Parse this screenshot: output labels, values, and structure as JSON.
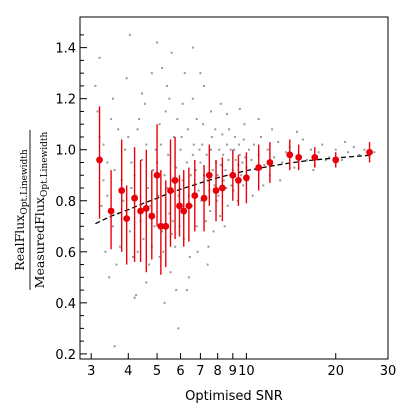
{
  "chart_data": {
    "type": "scatter",
    "title": "",
    "xlabel": "Optimised SNR",
    "ylabel": {
      "numerator": "RealFlux",
      "numerator_sub": "Opt.Linewidth",
      "denominator": "MeasuredFlux",
      "denominator_sub": "Opt.Linewidth"
    },
    "x_scale": "log",
    "xlim": [
      2.75,
      30
    ],
    "ylim": [
      0.18,
      1.52
    ],
    "x_ticks": [
      3,
      4,
      5,
      6,
      7,
      8,
      9,
      10,
      20,
      30
    ],
    "x_tick_labels": [
      "3",
      "4",
      "5",
      "6",
      "7",
      "8",
      "9",
      "10",
      "20",
      "30"
    ],
    "y_ticks": [
      0.2,
      0.4,
      0.6,
      0.8,
      1.0,
      1.2,
      1.4
    ],
    "y_tick_labels": [
      "0.2",
      "0.4",
      "0.6",
      "0.8",
      "1.0",
      "1.2",
      "1.4"
    ],
    "grid": false,
    "legend": "none",
    "series": [
      {
        "kind": "points",
        "color": "#999999",
        "points": [
          [
            3.1,
            1.25
          ],
          [
            3.2,
            1.36
          ],
          [
            3.15,
            1.15
          ],
          [
            3.3,
            1.02
          ],
          [
            3.4,
            0.95
          ],
          [
            3.25,
            0.78
          ],
          [
            3.35,
            0.6
          ],
          [
            3.45,
            0.5
          ],
          [
            3.2,
            1.05
          ],
          [
            3.5,
            1.12
          ],
          [
            3.6,
            0.92
          ],
          [
            3.7,
            1.08
          ],
          [
            3.55,
            0.7
          ],
          [
            3.8,
            0.88
          ],
          [
            3.65,
            0.55
          ],
          [
            3.9,
            1.0
          ],
          [
            3.75,
            0.62
          ],
          [
            3.85,
            0.8
          ],
          [
            3.55,
            1.2
          ],
          [
            3.3,
            0.88
          ],
          [
            4.0,
            1.05
          ],
          [
            4.1,
            0.95
          ],
          [
            4.05,
            0.68
          ],
          [
            4.2,
            0.9
          ],
          [
            4.3,
            1.08
          ],
          [
            4.15,
            0.58
          ],
          [
            4.25,
            0.82
          ],
          [
            4.4,
            0.72
          ],
          [
            4.35,
            1.12
          ],
          [
            4.05,
            1.45
          ],
          [
            4.2,
            0.42
          ],
          [
            4.45,
            0.96
          ],
          [
            4.5,
            0.65
          ],
          [
            4.6,
            1.02
          ],
          [
            4.65,
            0.85
          ],
          [
            4.7,
            0.55
          ],
          [
            4.75,
            0.78
          ],
          [
            4.55,
            1.18
          ],
          [
            4.85,
            0.92
          ],
          [
            4.9,
            0.7
          ],
          [
            4.95,
            1.0
          ],
          [
            4.8,
            0.62
          ],
          [
            4.1,
            0.85
          ],
          [
            4.6,
            0.48
          ],
          [
            4.45,
            1.22
          ],
          [
            5.0,
            0.95
          ],
          [
            5.1,
            1.1
          ],
          [
            5.05,
            0.82
          ],
          [
            5.2,
            0.68
          ],
          [
            5.3,
            0.9
          ],
          [
            5.15,
            1.02
          ],
          [
            5.25,
            0.6
          ],
          [
            5.4,
            0.85
          ],
          [
            5.35,
            1.15
          ],
          [
            5.5,
            0.75
          ],
          [
            5.45,
            0.98
          ],
          [
            5.6,
            0.88
          ],
          [
            5.55,
            0.52
          ],
          [
            5.7,
            1.05
          ],
          [
            5.65,
            0.72
          ],
          [
            5.8,
            0.93
          ],
          [
            5.75,
            0.62
          ],
          [
            5.9,
            0.82
          ],
          [
            5.85,
            1.12
          ],
          [
            5.95,
            0.7
          ],
          [
            5.0,
            1.42
          ],
          [
            5.2,
            1.32
          ],
          [
            5.4,
            1.25
          ],
          [
            5.6,
            1.38
          ],
          [
            5.8,
            0.45
          ],
          [
            5.3,
            0.4
          ],
          [
            5.1,
            0.58
          ],
          [
            5.5,
            1.2
          ],
          [
            6.0,
            1.0
          ],
          [
            6.1,
            0.88
          ],
          [
            6.05,
            1.05
          ],
          [
            6.2,
            0.75
          ],
          [
            6.3,
            0.95
          ],
          [
            6.15,
            0.65
          ],
          [
            6.4,
            0.82
          ],
          [
            6.35,
            1.08
          ],
          [
            6.5,
            0.9
          ],
          [
            6.45,
            0.58
          ],
          [
            6.6,
            0.98
          ],
          [
            6.55,
            0.78
          ],
          [
            6.7,
            0.86
          ],
          [
            6.65,
            1.02
          ],
          [
            6.8,
            0.7
          ],
          [
            6.75,
            0.92
          ],
          [
            6.9,
            0.84
          ],
          [
            6.85,
            0.6
          ],
          [
            6.95,
            1.0
          ],
          [
            6.2,
            1.3
          ],
          [
            6.4,
            0.5
          ],
          [
            6.6,
            1.2
          ],
          [
            6.8,
            1.12
          ],
          [
            6.3,
            0.45
          ],
          [
            6.1,
            1.18
          ],
          [
            7.0,
            0.95
          ],
          [
            7.1,
            1.02
          ],
          [
            7.05,
            0.8
          ],
          [
            7.2,
            0.9
          ],
          [
            7.3,
            0.72
          ],
          [
            7.15,
            1.1
          ],
          [
            7.4,
            0.88
          ],
          [
            7.35,
            0.98
          ],
          [
            7.5,
            0.84
          ],
          [
            7.45,
            0.62
          ],
          [
            7.6,
            1.0
          ],
          [
            7.55,
            0.76
          ],
          [
            7.7,
            0.92
          ],
          [
            7.65,
            1.05
          ],
          [
            7.8,
            0.86
          ],
          [
            7.75,
            0.68
          ],
          [
            7.9,
            0.95
          ],
          [
            7.85,
            1.08
          ],
          [
            7.95,
            0.8
          ],
          [
            7.2,
            1.25
          ],
          [
            7.6,
            1.15
          ],
          [
            7.4,
            0.55
          ],
          [
            8.0,
            0.9
          ],
          [
            8.1,
            1.0
          ],
          [
            8.05,
            0.82
          ],
          [
            8.2,
            0.94
          ],
          [
            8.3,
            1.06
          ],
          [
            8.15,
            0.74
          ],
          [
            8.4,
            0.88
          ],
          [
            8.35,
            0.98
          ],
          [
            8.5,
            0.92
          ],
          [
            8.45,
            0.7
          ],
          [
            8.6,
            1.02
          ],
          [
            8.55,
            0.85
          ],
          [
            8.7,
            0.96
          ],
          [
            8.65,
            0.78
          ],
          [
            8.8,
            0.9
          ],
          [
            8.75,
            1.08
          ],
          [
            8.9,
            0.86
          ],
          [
            8.85,
            1.0
          ],
          [
            8.2,
            1.18
          ],
          [
            8.6,
            1.14
          ],
          [
            9.0,
            0.92
          ],
          [
            9.1,
            1.0
          ],
          [
            9.05,
            0.84
          ],
          [
            9.2,
            0.96
          ],
          [
            9.3,
            0.88
          ],
          [
            9.15,
            1.05
          ],
          [
            9.4,
            0.94
          ],
          [
            9.35,
            0.8
          ],
          [
            9.5,
            0.98
          ],
          [
            9.45,
            1.02
          ],
          [
            9.6,
            0.9
          ],
          [
            9.7,
            0.95
          ],
          [
            9.8,
            1.04
          ],
          [
            9.75,
            0.86
          ],
          [
            9.9,
            0.97
          ],
          [
            9.85,
            1.1
          ],
          [
            10.0,
            0.93
          ],
          [
            10.2,
            1.0
          ],
          [
            10.1,
            0.88
          ],
          [
            10.4,
            0.96
          ],
          [
            10.6,
            1.02
          ],
          [
            10.8,
            0.92
          ],
          [
            11.0,
            0.98
          ],
          [
            11.2,
            1.05
          ],
          [
            11.5,
            0.94
          ],
          [
            11.8,
            1.0
          ],
          [
            12.0,
            0.9
          ],
          [
            12.4,
            0.97
          ],
          [
            12.8,
            1.03
          ],
          [
            13.2,
            0.95
          ],
          [
            13.6,
            0.99
          ],
          [
            14.0,
            1.01
          ],
          [
            14.5,
            0.93
          ],
          [
            15.0,
            0.98
          ],
          [
            15.5,
            1.04
          ],
          [
            16.0,
            0.96
          ],
          [
            16.5,
            1.0
          ],
          [
            17.0,
            0.94
          ],
          [
            17.5,
            0.99
          ],
          [
            18.0,
            1.02
          ],
          [
            19.0,
            0.97
          ],
          [
            20.0,
            1.0
          ],
          [
            21.0,
            0.96
          ],
          [
            22.0,
            0.99
          ],
          [
            23.0,
            1.01
          ],
          [
            24.0,
            0.98
          ],
          [
            25.0,
            1.0
          ],
          [
            26.0,
            0.97
          ],
          [
            27.0,
            0.99
          ],
          [
            10.5,
            0.82
          ],
          [
            11.4,
            0.86
          ],
          [
            12.2,
            1.08
          ],
          [
            13.0,
            0.88
          ],
          [
            14.8,
            1.07
          ],
          [
            16.8,
            0.92
          ],
          [
            18.5,
            0.96
          ],
          [
            21.5,
            1.03
          ],
          [
            3.6,
            0.23
          ],
          [
            4.25,
            0.43
          ],
          [
            5.9,
            0.3
          ],
          [
            3.95,
            1.28
          ],
          [
            4.8,
            1.3
          ],
          [
            6.6,
            1.4
          ],
          [
            7.0,
            1.3
          ],
          [
            9.5,
            1.16
          ],
          [
            11.0,
            1.12
          ],
          [
            3.4,
            0.82
          ],
          [
            3.7,
            0.75
          ],
          [
            4.3,
            0.6
          ],
          [
            5.6,
            0.67
          ]
        ]
      },
      {
        "kind": "binned_means",
        "color": "#e8000b",
        "points": [
          {
            "x": 3.2,
            "y": 0.96,
            "lo": 0.73,
            "hi": 1.17
          },
          {
            "x": 3.5,
            "y": 0.76,
            "lo": 0.61,
            "hi": 0.92
          },
          {
            "x": 3.8,
            "y": 0.84,
            "lo": 0.6,
            "hi": 1.04
          },
          {
            "x": 3.95,
            "y": 0.73,
            "lo": 0.55,
            "hi": 0.86
          },
          {
            "x": 4.2,
            "y": 0.81,
            "lo": 0.56,
            "hi": 1.01
          },
          {
            "x": 4.4,
            "y": 0.76,
            "lo": 0.56,
            "hi": 0.96
          },
          {
            "x": 4.6,
            "y": 0.77,
            "lo": 0.52,
            "hi": 1.0
          },
          {
            "x": 4.8,
            "y": 0.74,
            "lo": 0.57,
            "hi": 0.92
          },
          {
            "x": 5.0,
            "y": 0.9,
            "lo": 0.7,
            "hi": 1.1
          },
          {
            "x": 5.15,
            "y": 0.7,
            "lo": 0.51,
            "hi": 0.92
          },
          {
            "x": 5.35,
            "y": 0.7,
            "lo": 0.54,
            "hi": 0.88
          },
          {
            "x": 5.55,
            "y": 0.84,
            "lo": 0.62,
            "hi": 1.04
          },
          {
            "x": 5.75,
            "y": 0.88,
            "lo": 0.65,
            "hi": 1.05
          },
          {
            "x": 5.95,
            "y": 0.78,
            "lo": 0.66,
            "hi": 0.9
          },
          {
            "x": 6.15,
            "y": 0.76,
            "lo": 0.62,
            "hi": 0.92
          },
          {
            "x": 6.4,
            "y": 0.78,
            "lo": 0.64,
            "hi": 0.93
          },
          {
            "x": 6.7,
            "y": 0.82,
            "lo": 0.68,
            "hi": 0.96
          },
          {
            "x": 7.2,
            "y": 0.81,
            "lo": 0.68,
            "hi": 0.94
          },
          {
            "x": 7.5,
            "y": 0.9,
            "lo": 0.78,
            "hi": 1.02
          },
          {
            "x": 7.9,
            "y": 0.84,
            "lo": 0.72,
            "hi": 0.96
          },
          {
            "x": 8.3,
            "y": 0.85,
            "lo": 0.72,
            "hi": 0.97
          },
          {
            "x": 9.0,
            "y": 0.9,
            "lo": 0.8,
            "hi": 1.0
          },
          {
            "x": 9.4,
            "y": 0.88,
            "lo": 0.78,
            "hi": 0.98
          },
          {
            "x": 10.0,
            "y": 0.89,
            "lo": 0.79,
            "hi": 0.99
          },
          {
            "x": 11.0,
            "y": 0.93,
            "lo": 0.84,
            "hi": 1.02
          },
          {
            "x": 12.0,
            "y": 0.95,
            "lo": 0.87,
            "hi": 1.03
          },
          {
            "x": 14.0,
            "y": 0.98,
            "lo": 0.92,
            "hi": 1.04
          },
          {
            "x": 15.0,
            "y": 0.97,
            "lo": 0.92,
            "hi": 1.02
          },
          {
            "x": 17.0,
            "y": 0.97,
            "lo": 0.93,
            "hi": 1.01
          },
          {
            "x": 20.0,
            "y": 0.96,
            "lo": 0.93,
            "hi": 0.99
          },
          {
            "x": 26.0,
            "y": 0.99,
            "lo": 0.95,
            "hi": 1.03
          }
        ]
      },
      {
        "kind": "fit_curve",
        "color": "#000000",
        "style": "dashed",
        "points": [
          [
            3.1,
            0.71
          ],
          [
            3.5,
            0.74
          ],
          [
            4.0,
            0.765
          ],
          [
            4.5,
            0.79
          ],
          [
            5.0,
            0.81
          ],
          [
            5.5,
            0.83
          ],
          [
            6.0,
            0.845
          ],
          [
            7.0,
            0.87
          ],
          [
            8.0,
            0.89
          ],
          [
            9.0,
            0.905
          ],
          [
            10.0,
            0.918
          ],
          [
            12.0,
            0.935
          ],
          [
            14.0,
            0.948
          ],
          [
            16.0,
            0.957
          ],
          [
            18.0,
            0.963
          ],
          [
            20.0,
            0.968
          ],
          [
            24.0,
            0.975
          ],
          [
            26.0,
            0.978
          ]
        ]
      }
    ]
  }
}
